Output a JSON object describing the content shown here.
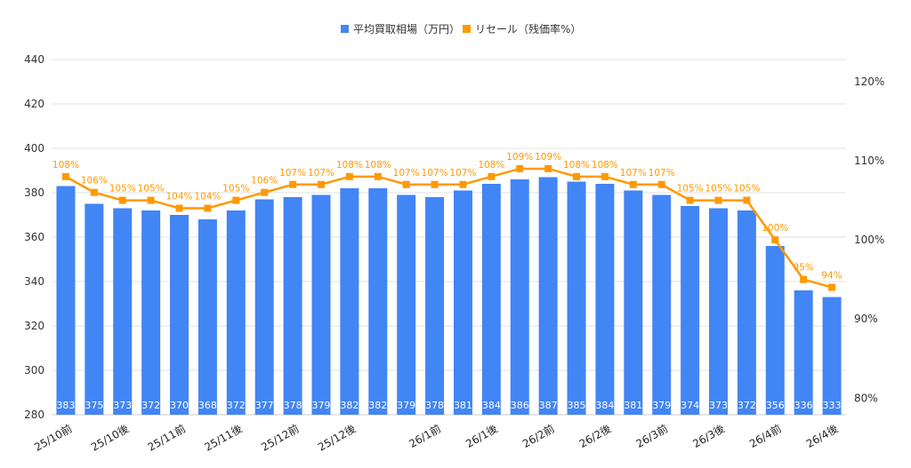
{
  "chart_data": {
    "type": "bar+line",
    "legend_position": "top",
    "grid": true,
    "colors": {
      "bar": "#4285f4",
      "line": "#ff9900",
      "grid": "#e0e0e0"
    },
    "categories": [
      "25/10前",
      "",
      "25/10後",
      "",
      "25/11前",
      "",
      "25/11後",
      "",
      "25/12前",
      "",
      "25/12後",
      "",
      "",
      "26/1前",
      "",
      "26/1後",
      "",
      "26/2前",
      "",
      "26/2後",
      "",
      "26/3前",
      "",
      "26/3後",
      "",
      "26/4前",
      "",
      "26/4後"
    ],
    "series": [
      {
        "name": "平均買取相場（万円）",
        "type": "bar",
        "axis": "left",
        "values": [
          383,
          375,
          373,
          372,
          370,
          368,
          372,
          377,
          378,
          379,
          382,
          382,
          379,
          378,
          381,
          384,
          386,
          387,
          385,
          384,
          381,
          379,
          374,
          373,
          372,
          356,
          336,
          333
        ]
      },
      {
        "name": "リセール（残価率%）",
        "type": "line",
        "axis": "right",
        "values": [
          108,
          106,
          105,
          105,
          104,
          104,
          105,
          106,
          107,
          107,
          108,
          108,
          107,
          107,
          107,
          108,
          109,
          109,
          108,
          108,
          107,
          107,
          105,
          105,
          105,
          100,
          95,
          94
        ]
      }
    ],
    "left_axis": {
      "ylim": [
        280,
        440
      ],
      "ticks": [
        "280",
        "300",
        "320",
        "340",
        "360",
        "380",
        "400",
        "420",
        "440"
      ]
    },
    "right_axis": {
      "ylim": [
        77.9,
        122.8
      ],
      "ticks": [
        "80%",
        "90%",
        "100%",
        "110%",
        "120%"
      ],
      "tick_values": [
        80,
        90,
        100,
        110,
        120
      ]
    }
  }
}
